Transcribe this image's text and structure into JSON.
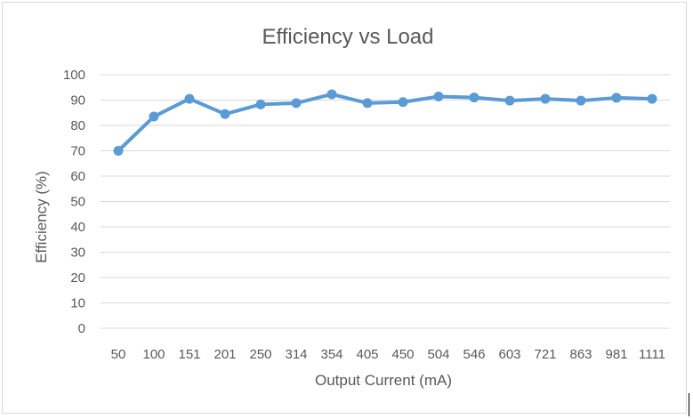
{
  "chart_data": {
    "type": "line",
    "title": "Efficiency vs Load",
    "xlabel": "Output Current (mA)",
    "ylabel": "Efficiency (%)",
    "categories": [
      "50",
      "100",
      "151",
      "201",
      "250",
      "314",
      "354",
      "405",
      "450",
      "504",
      "546",
      "603",
      "721",
      "863",
      "981",
      "1111"
    ],
    "series": [
      {
        "values": [
          70,
          83.5,
          90.5,
          84.5,
          88.3,
          88.8,
          92.3,
          88.8,
          89.2,
          91.4,
          91.0,
          89.8,
          90.5,
          89.8,
          90.9,
          90.5
        ],
        "color": "#5b9bd5"
      }
    ],
    "ylim": [
      0,
      100
    ],
    "yticks": [
      0,
      10,
      20,
      30,
      40,
      50,
      60,
      70,
      80,
      90,
      100
    ],
    "grid": true,
    "legend": "none"
  }
}
